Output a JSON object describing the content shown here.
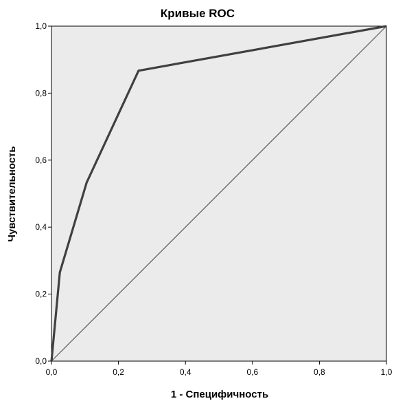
{
  "chart_data": {
    "type": "line",
    "title": "Кривые ROC",
    "xlabel": "1 - Специфичность",
    "ylabel": "Чувствительность",
    "xlim": [
      0,
      1
    ],
    "ylim": [
      0,
      1
    ],
    "x_ticks": [
      "0,0",
      "0,2",
      "0,4",
      "0,6",
      "0,8",
      "1,0"
    ],
    "y_ticks": [
      "0,0",
      "0,2",
      "0,4",
      "0,6",
      "0,8",
      "1,0"
    ],
    "grid": false,
    "legend": "none",
    "series": [
      {
        "role": "roc-curve",
        "x": [
          0,
          0.025,
          0.105,
          0.26,
          1.0
        ],
        "y": [
          0,
          0.265,
          0.533,
          0.867,
          1.0
        ]
      },
      {
        "role": "reference-line",
        "x": [
          0,
          1
        ],
        "y": [
          0,
          1
        ]
      }
    ],
    "colors": {
      "plot_background": "#ebebeb",
      "roc_line": "#404040",
      "reference_line": "#5a5a5a",
      "axis": "#000000"
    }
  }
}
